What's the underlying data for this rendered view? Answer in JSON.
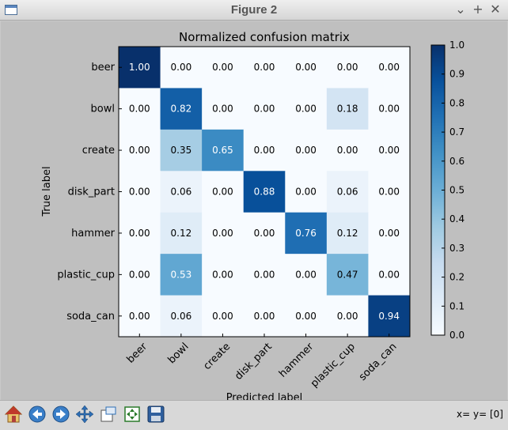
{
  "window": {
    "title": "Figure 2",
    "controls": {
      "minimize": "⌄",
      "maximize": "+",
      "close": "✕"
    }
  },
  "toolbar": {
    "buttons": [
      {
        "name": "home-button",
        "icon": "home-icon"
      },
      {
        "name": "back-button",
        "icon": "back-arrow-icon"
      },
      {
        "name": "forward-button",
        "icon": "forward-arrow-icon"
      },
      {
        "name": "pan-button",
        "icon": "pan-move-icon"
      },
      {
        "name": "zoom-button",
        "icon": "zoom-rect-icon"
      },
      {
        "name": "subplots-button",
        "icon": "subplots-config-icon"
      },
      {
        "name": "save-button",
        "icon": "save-disk-icon"
      }
    ],
    "coord_readout": "x= y= [0]"
  },
  "chart_data": {
    "type": "heatmap",
    "title": "Normalized confusion matrix",
    "xlabel": "Predicted label",
    "ylabel": "True label",
    "x_labels": [
      "beer",
      "bowl",
      "create",
      "disk_part",
      "hammer",
      "plastic_cup",
      "soda_can"
    ],
    "y_labels": [
      "beer",
      "bowl",
      "create",
      "disk_part",
      "hammer",
      "plastic_cup",
      "soda_can"
    ],
    "values": [
      [
        1.0,
        0.0,
        0.0,
        0.0,
        0.0,
        0.0,
        0.0
      ],
      [
        0.0,
        0.82,
        0.0,
        0.0,
        0.0,
        0.18,
        0.0
      ],
      [
        0.0,
        0.35,
        0.65,
        0.0,
        0.0,
        0.0,
        0.0
      ],
      [
        0.0,
        0.06,
        0.0,
        0.88,
        0.0,
        0.06,
        0.0
      ],
      [
        0.0,
        0.12,
        0.0,
        0.0,
        0.76,
        0.12,
        0.0
      ],
      [
        0.0,
        0.53,
        0.0,
        0.0,
        0.0,
        0.47,
        0.0
      ],
      [
        0.0,
        0.06,
        0.0,
        0.0,
        0.0,
        0.0,
        0.94
      ]
    ],
    "cell_labels": [
      [
        "1.00",
        "0.00",
        "0.00",
        "0.00",
        "0.00",
        "0.00",
        "0.00"
      ],
      [
        "0.00",
        "0.82",
        "0.00",
        "0.00",
        "0.00",
        "0.18",
        "0.00"
      ],
      [
        "0.00",
        "0.35",
        "0.65",
        "0.00",
        "0.00",
        "0.00",
        "0.00"
      ],
      [
        "0.00",
        "0.06",
        "0.00",
        "0.88",
        "0.00",
        "0.06",
        "0.00"
      ],
      [
        "0.00",
        "0.12",
        "0.00",
        "0.00",
        "0.76",
        "0.12",
        "0.00"
      ],
      [
        "0.00",
        "0.53",
        "0.00",
        "0.00",
        "0.00",
        "0.47",
        "0.00"
      ],
      [
        "0.00",
        "0.06",
        "0.00",
        "0.00",
        "0.00",
        "0.00",
        "0.94"
      ]
    ],
    "colormap": "Blues",
    "colorbar": {
      "range": [
        0.0,
        1.0
      ],
      "ticks": [
        0.0,
        0.1,
        0.2,
        0.3,
        0.4,
        0.5,
        0.6,
        0.7,
        0.8,
        0.9,
        1.0
      ],
      "tick_labels": [
        "0.0",
        "0.1",
        "0.2",
        "0.3",
        "0.4",
        "0.5",
        "0.6",
        "0.7",
        "0.8",
        "0.9",
        "1.0"
      ]
    },
    "x_tick_rotation_deg": 45
  }
}
